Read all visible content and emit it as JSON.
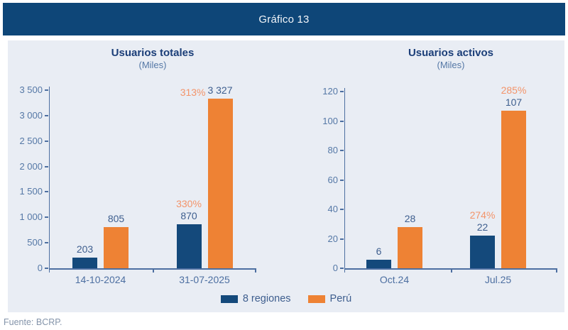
{
  "header": {
    "title": "Gráfico 13"
  },
  "footer": {
    "source": "Fuente: BCRP."
  },
  "legend": {
    "items": [
      {
        "label": "8 regiones",
        "color": "#14497b"
      },
      {
        "label": "Perú",
        "color": "#ee8234"
      }
    ]
  },
  "colors": {
    "header_bg": "#0e4678",
    "panel_bg": "#e9edf4",
    "series_8_regiones": "#14497b",
    "series_peru": "#ee8234",
    "percent_label": "#f3946a",
    "value_label": "#3e5e8e",
    "axis": "#4d6fa1"
  },
  "chart_data": [
    {
      "type": "bar",
      "title": "Usuarios totales",
      "subtitle": "(Miles)",
      "categories": [
        "14-10-2024",
        "31-07-2025"
      ],
      "series": [
        {
          "name": "8 regiones",
          "color": "#14497b",
          "values": [
            203,
            870
          ],
          "value_labels": [
            "203",
            "870"
          ]
        },
        {
          "name": "Perú",
          "color": "#ee8234",
          "values": [
            805,
            3327
          ],
          "value_labels": [
            "805",
            "3 327"
          ]
        }
      ],
      "annotations": [
        {
          "text": "330%",
          "series": 0,
          "category": 1,
          "placement": "above"
        },
        {
          "text": "313%",
          "series": 1,
          "category": 1,
          "placement": "left"
        }
      ],
      "ylim": [
        0,
        3500
      ],
      "yticks": [
        "0",
        "500",
        "1 000",
        "1 500",
        "2 000",
        "2 500",
        "3 000",
        "3 500"
      ],
      "grid": false,
      "legend_position": "bottom"
    },
    {
      "type": "bar",
      "title": "Usuarios activos",
      "subtitle": "(Miles)",
      "categories": [
        "Oct.24",
        "Jul.25"
      ],
      "series": [
        {
          "name": "8 regiones",
          "color": "#14497b",
          "values": [
            6,
            22
          ],
          "value_labels": [
            "6",
            "22"
          ]
        },
        {
          "name": "Perú",
          "color": "#ee8234",
          "values": [
            28,
            107
          ],
          "value_labels": [
            "28",
            "107"
          ]
        }
      ],
      "annotations": [
        {
          "text": "274%",
          "series": 0,
          "category": 1,
          "placement": "above"
        },
        {
          "text": "285%",
          "series": 1,
          "category": 1,
          "placement": "above"
        }
      ],
      "ylim": [
        0,
        120
      ],
      "yticks": [
        "0",
        "20",
        "40",
        "60",
        "80",
        "100",
        "120"
      ],
      "grid": false,
      "legend_position": "bottom"
    }
  ]
}
